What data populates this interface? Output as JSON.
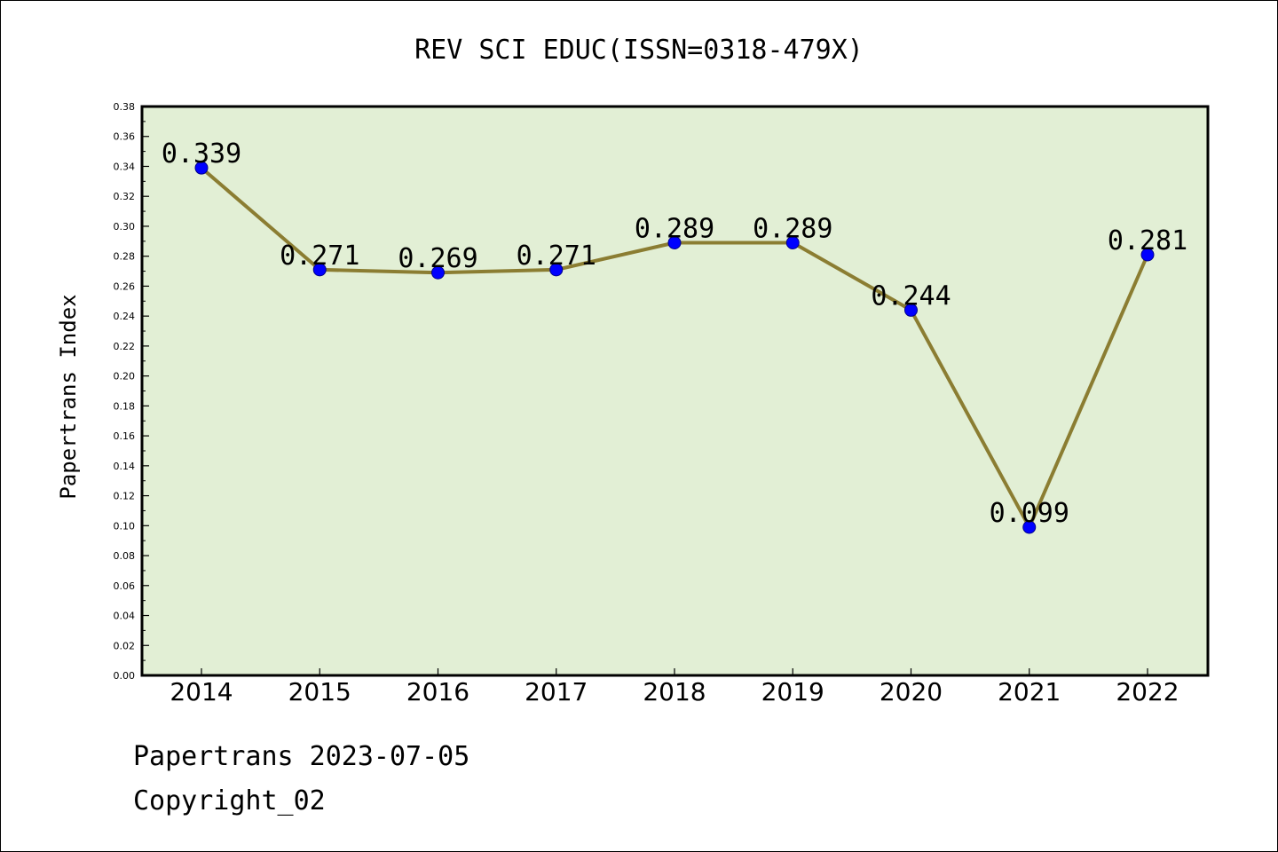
{
  "chart_data": {
    "type": "line",
    "title": "REV SCI EDUC(ISSN=0318-479X)",
    "ylabel": "Papertrans Index",
    "xlabel": "",
    "categories": [
      "2014",
      "2015",
      "2016",
      "2017",
      "2018",
      "2019",
      "2020",
      "2021",
      "2022"
    ],
    "values": [
      0.339,
      0.271,
      0.269,
      0.271,
      0.289,
      0.289,
      0.244,
      0.099,
      0.281
    ],
    "data_labels": [
      "0.339",
      "0.271",
      "0.269",
      "0.271",
      "0.289",
      "0.289",
      "0.244",
      "0.099",
      "0.281"
    ],
    "ylim": [
      0,
      0.38
    ],
    "yticks": [
      "0.00",
      "0.02",
      "0.04",
      "0.06",
      "0.08",
      "0.10",
      "0.12",
      "0.14",
      "0.16",
      "0.18",
      "0.20",
      "0.22",
      "0.24",
      "0.26",
      "0.28",
      "0.30",
      "0.32",
      "0.34",
      "0.36",
      "0.38"
    ],
    "grid": false,
    "colors": {
      "plot_background": "#e2efd5",
      "line": "#8b7d32",
      "marker": "#0000ff"
    }
  },
  "footer": {
    "line1": "Papertrans 2023-07-05",
    "line2": "Copyright_02"
  }
}
